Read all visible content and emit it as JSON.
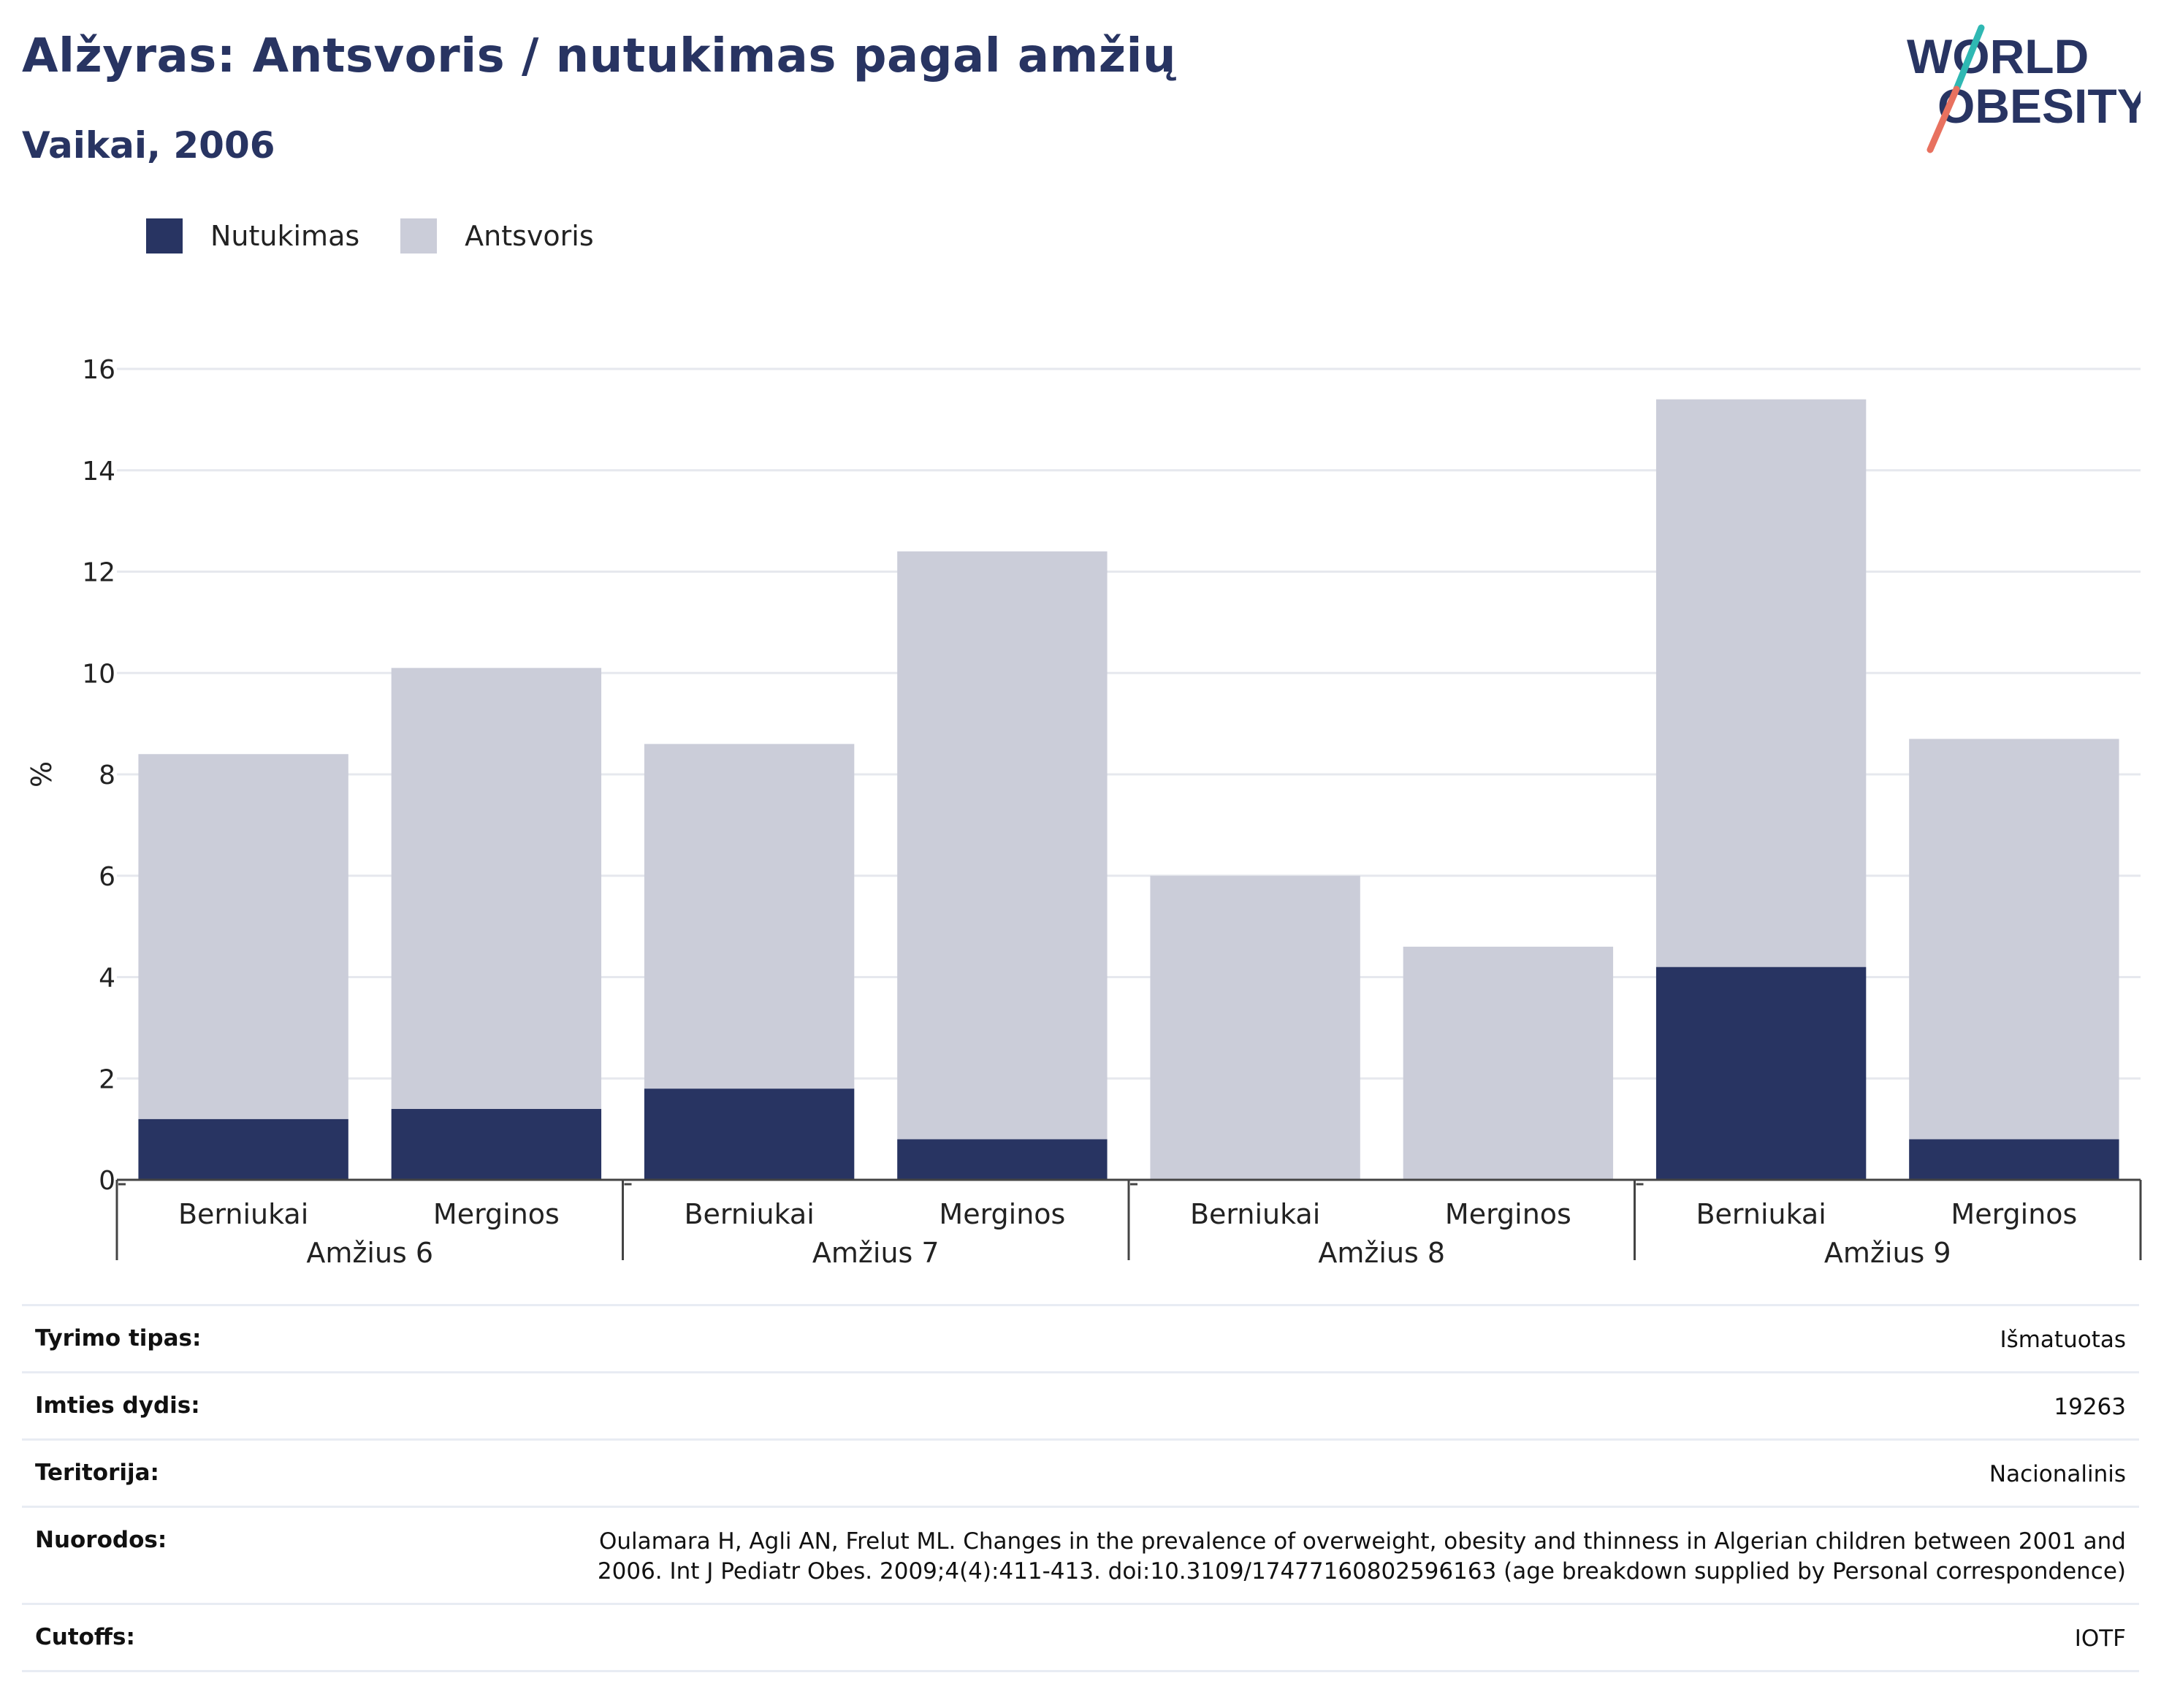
{
  "title": "Alžyras: Antsvoris / nutukimas pagal amžių",
  "subtitle": "Vaikai, 2006",
  "logo": {
    "line1": "WORLD",
    "line2": "OBESITY"
  },
  "colors": {
    "obesity": "#283462",
    "overweight": "#cbcdd9",
    "title": "#283462",
    "logo_teal": "#2fb8b3",
    "logo_red": "#e8715f"
  },
  "chart_data": {
    "type": "bar",
    "stacked": true,
    "ylabel": "%",
    "ylim": [
      0,
      16
    ],
    "yticks": [
      0,
      2,
      4,
      6,
      8,
      10,
      12,
      14,
      16
    ],
    "grid": true,
    "legend_position": "top-left",
    "groups": [
      "Amžius 6",
      "Amžius 7",
      "Amžius 8",
      "Amžius 9"
    ],
    "categories": [
      "Berniukai",
      "Merginos",
      "Berniukai",
      "Merginos",
      "Berniukai",
      "Merginos",
      "Berniukai",
      "Merginos"
    ],
    "series": [
      {
        "name": "Nutukimas",
        "values": [
          1.2,
          1.4,
          1.8,
          0.8,
          0,
          0,
          4.2,
          0.8
        ]
      },
      {
        "name": "Antsvoris",
        "values": [
          7.2,
          8.7,
          6.8,
          11.6,
          6.0,
          4.6,
          11.2,
          7.9
        ]
      }
    ]
  },
  "info": [
    {
      "key": "Tyrimo tipas:",
      "value": "Išmatuotas"
    },
    {
      "key": "Imties dydis:",
      "value": "19263"
    },
    {
      "key": "Teritorija:",
      "value": "Nacionalinis"
    },
    {
      "key": "Nuorodos:",
      "value": "Oulamara H, Agli AN, Frelut ML. Changes in the prevalence of overweight, obesity and thinness in Algerian children between 2001 and 2006. Int J Pediatr Obes. 2009;4(4):411-413. doi:10.3109/17477160802596163 (age breakdown supplied by Personal correspondence)"
    },
    {
      "key": "Cutoffs:",
      "value": "IOTF"
    }
  ]
}
